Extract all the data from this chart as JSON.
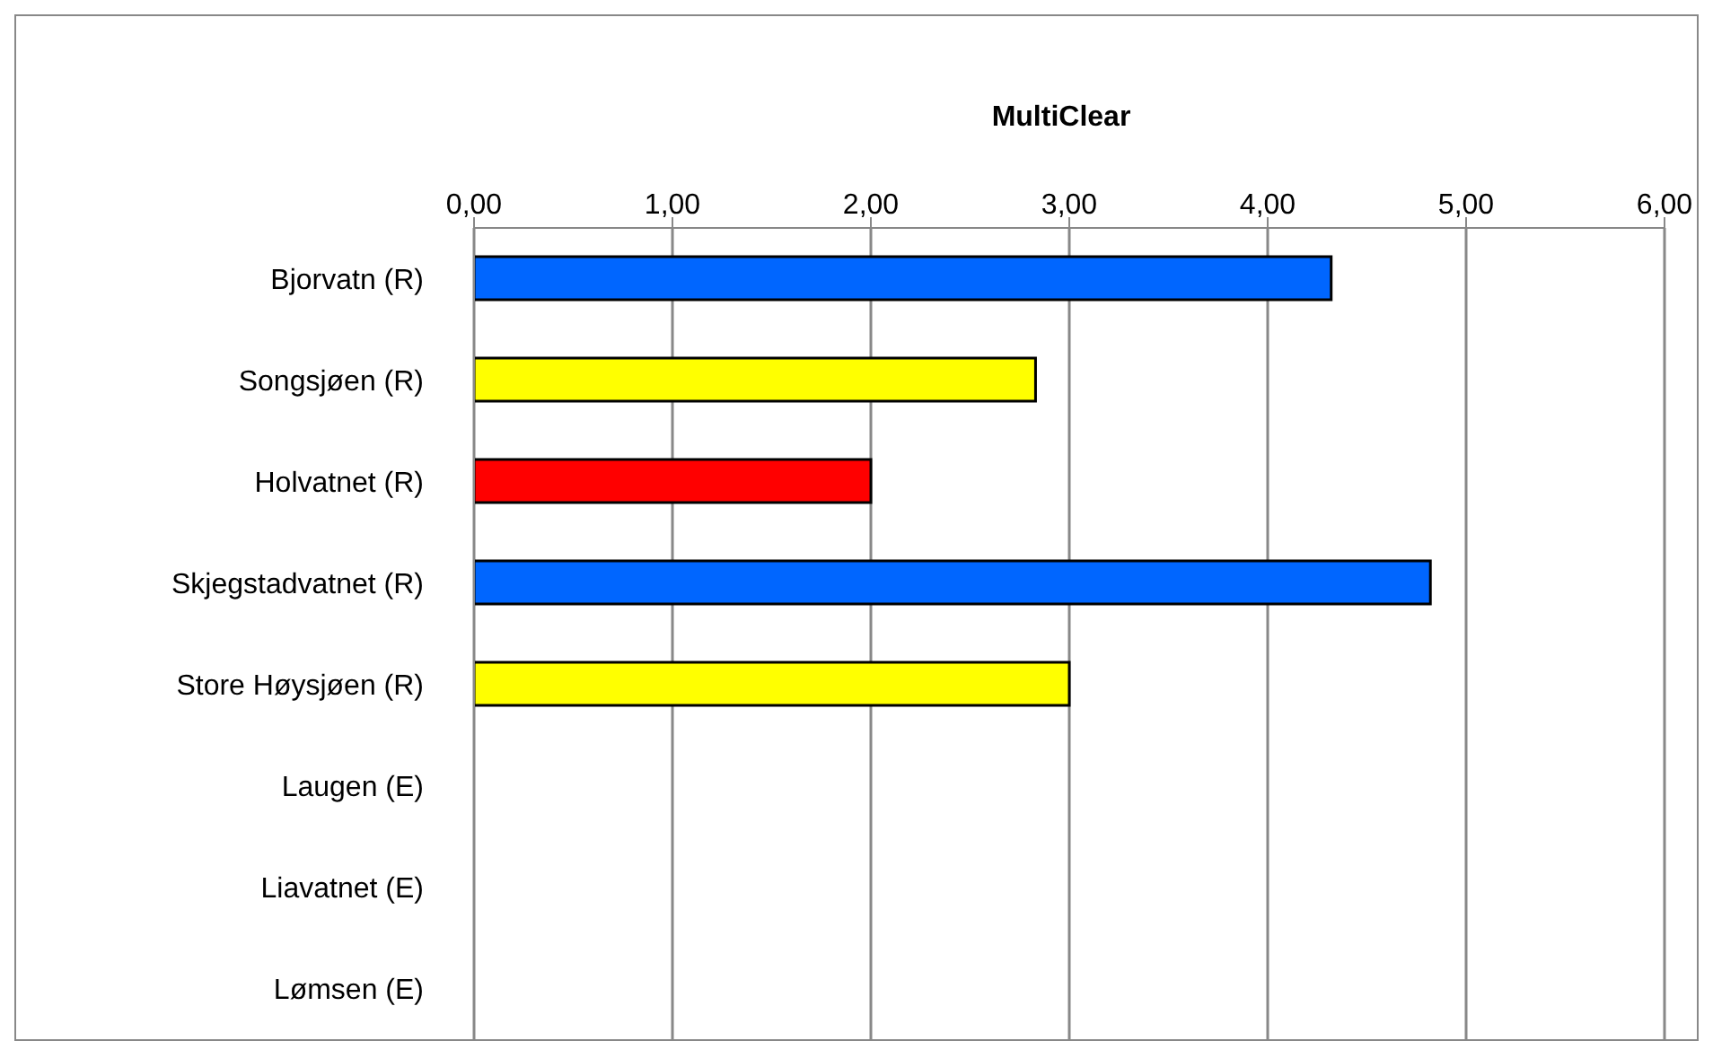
{
  "chart_data": {
    "type": "bar",
    "orientation": "horizontal",
    "title": "MultiClear",
    "categories": [
      "Bjorvatn (R)",
      "Songsjøen (R)",
      "Holvatnet (R)",
      "Skjegstadvatnet (R)",
      "Store Høysjøen (R)",
      "Laugen (E)",
      "Liavatnet (E)",
      "Lømsen (E)"
    ],
    "values": [
      4.32,
      2.83,
      2.0,
      4.82,
      3.0,
      null,
      null,
      null
    ],
    "colors": [
      "#0066ff",
      "#ffff00",
      "#ff0000",
      "#0066ff",
      "#ffff00",
      null,
      null,
      null
    ],
    "xlim": [
      0,
      6
    ],
    "xticks": [
      {
        "value": 0,
        "label": "0,00"
      },
      {
        "value": 1,
        "label": "1,00"
      },
      {
        "value": 2,
        "label": "2,00"
      },
      {
        "value": 3,
        "label": "3,00"
      },
      {
        "value": 4,
        "label": "4,00"
      },
      {
        "value": 5,
        "label": "5,00"
      },
      {
        "value": 6,
        "label": "6,00"
      }
    ],
    "grid": "x",
    "legend": false
  }
}
